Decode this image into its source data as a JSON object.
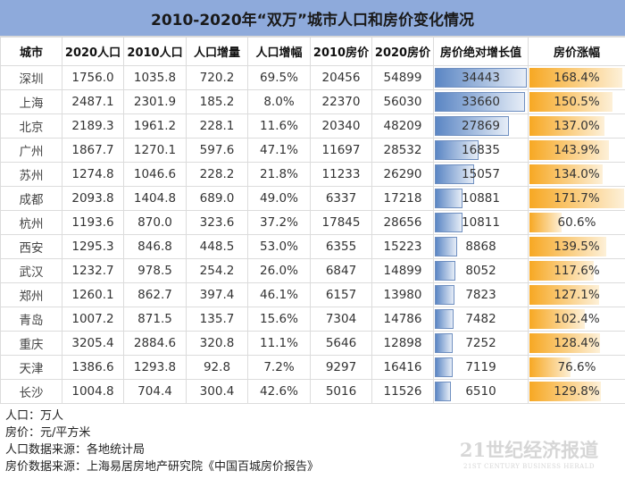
{
  "title": "2010-2020年“双万”城市人口和房价变化情况",
  "chart_data": {
    "type": "table",
    "title": "2010-2020年“双万”城市人口和房价变化情况",
    "columns": [
      "城市",
      "2020人口",
      "2010人口",
      "人口增量",
      "人口增幅",
      "2010房价",
      "2020房价",
      "房价绝对增长值",
      "房价涨幅"
    ],
    "rows": [
      [
        "深圳",
        "1756.0",
        "1035.8",
        "720.2",
        "69.5%",
        "20456",
        "54899",
        "34443",
        "168.4%"
      ],
      [
        "上海",
        "2487.1",
        "2301.9",
        "185.2",
        "8.0%",
        "22370",
        "56030",
        "33660",
        "150.5%"
      ],
      [
        "北京",
        "2189.3",
        "1961.2",
        "228.1",
        "11.6%",
        "20340",
        "48209",
        "27869",
        "137.0%"
      ],
      [
        "广州",
        "1867.7",
        "1270.1",
        "597.6",
        "47.1%",
        "11697",
        "28532",
        "16835",
        "143.9%"
      ],
      [
        "苏州",
        "1274.8",
        "1046.6",
        "228.2",
        "21.8%",
        "11233",
        "26290",
        "15057",
        "134.0%"
      ],
      [
        "成都",
        "2093.8",
        "1404.8",
        "689.0",
        "49.0%",
        "6337",
        "17218",
        "10881",
        "171.7%"
      ],
      [
        "杭州",
        "1193.6",
        "870.0",
        "323.6",
        "37.2%",
        "17845",
        "28656",
        "10811",
        "60.6%"
      ],
      [
        "西安",
        "1295.3",
        "846.8",
        "448.5",
        "53.0%",
        "6355",
        "15223",
        "8868",
        "139.5%"
      ],
      [
        "武汉",
        "1232.7",
        "978.5",
        "254.2",
        "26.0%",
        "6847",
        "14899",
        "8052",
        "117.6%"
      ],
      [
        "郑州",
        "1260.1",
        "862.7",
        "397.4",
        "46.1%",
        "6157",
        "13980",
        "7823",
        "127.1%"
      ],
      [
        "青岛",
        "1007.2",
        "871.5",
        "135.7",
        "15.6%",
        "7304",
        "14786",
        "7482",
        "102.4%"
      ],
      [
        "重庆",
        "3205.4",
        "2884.6",
        "320.8",
        "11.1%",
        "5646",
        "12898",
        "7252",
        "128.4%"
      ],
      [
        "天津",
        "1386.6",
        "1293.8",
        "92.8",
        "7.2%",
        "9297",
        "16416",
        "7119",
        "76.6%"
      ],
      [
        "长沙",
        "1004.8",
        "704.4",
        "300.4",
        "42.6%",
        "5016",
        "11526",
        "6510",
        "129.8%"
      ]
    ],
    "data_bars": {
      "房价绝对增长值": "#5b86c4",
      "房价涨幅": "#f7a823"
    }
  },
  "notes": [
    "人口：万人",
    "房价：元/平方米",
    "人口数据来源：各地统计局",
    "房价数据来源：上海易居房地产研究院《中国百城房价报告》"
  ],
  "watermark": {
    "line1": "21世纪经济报道",
    "line2": "21ST CENTURY BUSINESS HERALD"
  },
  "colors": {
    "title_bg": "#8eaadb"
  }
}
